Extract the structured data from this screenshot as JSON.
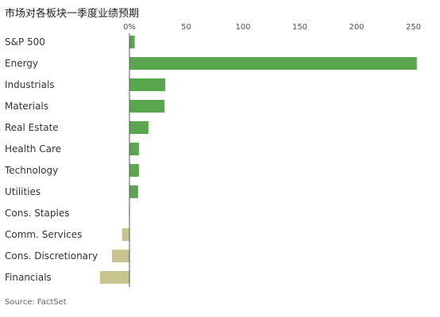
{
  "title": "市场对各板块一季度业绩预期",
  "source": "Source: FactSet",
  "chart_data": {
    "type": "bar",
    "orientation": "horizontal",
    "title": "市场对各板块一季度业绩预期",
    "xlabel": "",
    "ylabel": "",
    "x_tick_labels": [
      "0%",
      "50",
      "100",
      "150",
      "200",
      "250"
    ],
    "xlim": [
      -30,
      255
    ],
    "grid": false,
    "categories": [
      "S&P 500",
      "Energy",
      "Industrials",
      "Materials",
      "Real Estate",
      "Health Care",
      "Technology",
      "Utilities",
      "Cons. Staples",
      "Comm. Services",
      "Cons. Discretionary",
      "Financials"
    ],
    "values": [
      4.6,
      253,
      31.5,
      30.8,
      16.7,
      8.3,
      8.3,
      7.6,
      -0.4,
      -6.6,
      -15.4,
      -26.0
    ],
    "colors": {
      "positive": "#5aa64f",
      "negative": "#c8c48f"
    }
  }
}
